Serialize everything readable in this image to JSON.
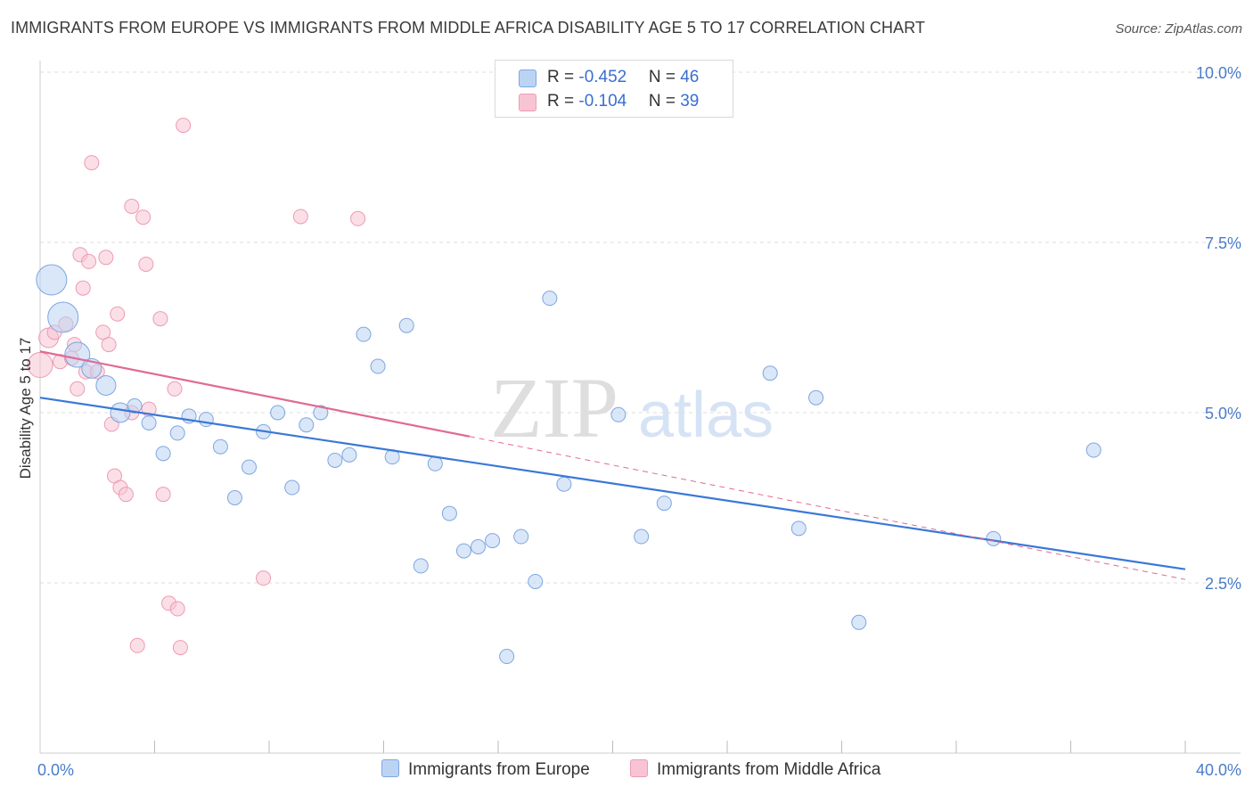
{
  "title": "IMMIGRANTS FROM EUROPE VS IMMIGRANTS FROM MIDDLE AFRICA DISABILITY AGE 5 TO 17 CORRELATION CHART",
  "source": "Source: ZipAtlas.com",
  "watermark": {
    "zip": "ZIP",
    "atlas": "atlas"
  },
  "legend": {
    "rows": [
      {
        "r_label": "R = ",
        "r_value": "-0.452",
        "n_label": "N = ",
        "n_value": "46"
      },
      {
        "r_label": "R = ",
        "r_value": "-0.104",
        "n_label": "N = ",
        "n_value": "39"
      }
    ]
  },
  "bottom_legend": [
    "Immigrants from Europe",
    "Immigrants from Middle Africa"
  ],
  "colors": {
    "europe_fill": "#bcd4f3",
    "europe_stroke": "#7ea6e0",
    "europe_line": "#3a78d6",
    "africa_fill": "#f8c4d4",
    "africa_stroke": "#ee9ab4",
    "africa_line": "#e06a93",
    "grid": "#dddddd",
    "tick_text": "#4a7cc9"
  },
  "chart_data": {
    "type": "scatter",
    "title": "IMMIGRANTS FROM EUROPE VS IMMIGRANTS FROM MIDDLE AFRICA DISABILITY AGE 5 TO 17 CORRELATION CHART",
    "xlabel": "",
    "ylabel": "Disability Age 5 to 17",
    "xlim": [
      0,
      40
    ],
    "ylim": [
      0,
      10.5
    ],
    "x_tick_labels": [
      {
        "value": 0,
        "label": "0.0%"
      },
      {
        "value": 40,
        "label": "40.0%"
      }
    ],
    "y_tick_labels": [
      {
        "value": 2.5,
        "label": "2.5%"
      },
      {
        "value": 5.0,
        "label": "5.0%"
      },
      {
        "value": 7.5,
        "label": "7.5%"
      },
      {
        "value": 10.0,
        "label": "10.0%"
      }
    ],
    "series": [
      {
        "name": "Immigrants from Europe",
        "R": -0.452,
        "N": 46,
        "trend": {
          "x": [
            0,
            40
          ],
          "y": [
            5.22,
            2.7
          ]
        },
        "points": [
          {
            "x": 0.4,
            "y": 6.95,
            "s": "xl"
          },
          {
            "x": 0.8,
            "y": 6.4,
            "s": "xl"
          },
          {
            "x": 1.3,
            "y": 5.85,
            "s": "l"
          },
          {
            "x": 1.8,
            "y": 5.65,
            "s": "m"
          },
          {
            "x": 2.3,
            "y": 5.4,
            "s": "m"
          },
          {
            "x": 2.8,
            "y": 5.0,
            "s": "m"
          },
          {
            "x": 3.3,
            "y": 5.1,
            "s": "s"
          },
          {
            "x": 3.8,
            "y": 4.85,
            "s": "s"
          },
          {
            "x": 4.3,
            "y": 4.4,
            "s": "s"
          },
          {
            "x": 4.8,
            "y": 4.7,
            "s": "s"
          },
          {
            "x": 5.2,
            "y": 4.95,
            "s": "s"
          },
          {
            "x": 5.8,
            "y": 4.9,
            "s": "s"
          },
          {
            "x": 6.3,
            "y": 4.5,
            "s": "s"
          },
          {
            "x": 6.8,
            "y": 3.75,
            "s": "s"
          },
          {
            "x": 7.3,
            "y": 4.2,
            "s": "s"
          },
          {
            "x": 7.8,
            "y": 4.72,
            "s": "s"
          },
          {
            "x": 8.3,
            "y": 5.0,
            "s": "s"
          },
          {
            "x": 8.8,
            "y": 3.9,
            "s": "s"
          },
          {
            "x": 9.3,
            "y": 4.82,
            "s": "s"
          },
          {
            "x": 9.8,
            "y": 5.0,
            "s": "s"
          },
          {
            "x": 10.3,
            "y": 4.3,
            "s": "s"
          },
          {
            "x": 10.8,
            "y": 4.38,
            "s": "s"
          },
          {
            "x": 11.3,
            "y": 6.15,
            "s": "s"
          },
          {
            "x": 11.8,
            "y": 5.68,
            "s": "s"
          },
          {
            "x": 12.3,
            "y": 4.35,
            "s": "s"
          },
          {
            "x": 12.8,
            "y": 6.28,
            "s": "s"
          },
          {
            "x": 13.3,
            "y": 2.75,
            "s": "s"
          },
          {
            "x": 13.8,
            "y": 4.25,
            "s": "s"
          },
          {
            "x": 14.3,
            "y": 3.52,
            "s": "s"
          },
          {
            "x": 14.8,
            "y": 2.97,
            "s": "s"
          },
          {
            "x": 15.3,
            "y": 3.03,
            "s": "s"
          },
          {
            "x": 15.8,
            "y": 3.12,
            "s": "s"
          },
          {
            "x": 16.3,
            "y": 1.42,
            "s": "s"
          },
          {
            "x": 16.8,
            "y": 3.18,
            "s": "s"
          },
          {
            "x": 17.3,
            "y": 2.52,
            "s": "s"
          },
          {
            "x": 17.8,
            "y": 6.68,
            "s": "s"
          },
          {
            "x": 18.3,
            "y": 3.95,
            "s": "s"
          },
          {
            "x": 20.2,
            "y": 4.97,
            "s": "s"
          },
          {
            "x": 21.0,
            "y": 3.18,
            "s": "s"
          },
          {
            "x": 21.8,
            "y": 3.67,
            "s": "s"
          },
          {
            "x": 25.5,
            "y": 5.58,
            "s": "s"
          },
          {
            "x": 26.5,
            "y": 3.3,
            "s": "s"
          },
          {
            "x": 27.1,
            "y": 5.22,
            "s": "s"
          },
          {
            "x": 28.6,
            "y": 1.92,
            "s": "s"
          },
          {
            "x": 33.3,
            "y": 3.15,
            "s": "s"
          },
          {
            "x": 36.8,
            "y": 4.45,
            "s": "s"
          }
        ]
      },
      {
        "name": "Immigrants from Middle Africa",
        "R": -0.104,
        "N": 39,
        "trend": {
          "x": [
            0,
            15
          ],
          "y": [
            5.9,
            4.65
          ]
        },
        "trend_extended": {
          "x": [
            15,
            40
          ],
          "y": [
            4.65,
            2.55
          ]
        },
        "points": [
          {
            "x": 0.0,
            "y": 5.7,
            "s": "l"
          },
          {
            "x": 0.3,
            "y": 6.1,
            "s": "m"
          },
          {
            "x": 0.5,
            "y": 6.18,
            "s": "s"
          },
          {
            "x": 0.7,
            "y": 5.75,
            "s": "s"
          },
          {
            "x": 0.9,
            "y": 6.3,
            "s": "s"
          },
          {
            "x": 1.1,
            "y": 5.8,
            "s": "s"
          },
          {
            "x": 1.2,
            "y": 6.0,
            "s": "s"
          },
          {
            "x": 1.3,
            "y": 5.35,
            "s": "s"
          },
          {
            "x": 1.4,
            "y": 7.32,
            "s": "s"
          },
          {
            "x": 1.5,
            "y": 6.83,
            "s": "s"
          },
          {
            "x": 1.6,
            "y": 5.6,
            "s": "s"
          },
          {
            "x": 1.7,
            "y": 7.22,
            "s": "s"
          },
          {
            "x": 1.8,
            "y": 8.67,
            "s": "s"
          },
          {
            "x": 2.0,
            "y": 5.6,
            "s": "s"
          },
          {
            "x": 2.2,
            "y": 6.18,
            "s": "s"
          },
          {
            "x": 2.3,
            "y": 7.28,
            "s": "s"
          },
          {
            "x": 2.4,
            "y": 6.0,
            "s": "s"
          },
          {
            "x": 2.5,
            "y": 4.83,
            "s": "s"
          },
          {
            "x": 2.6,
            "y": 4.07,
            "s": "s"
          },
          {
            "x": 2.7,
            "y": 6.45,
            "s": "s"
          },
          {
            "x": 2.8,
            "y": 3.9,
            "s": "s"
          },
          {
            "x": 3.0,
            "y": 3.8,
            "s": "s"
          },
          {
            "x": 3.2,
            "y": 5.0,
            "s": "s"
          },
          {
            "x": 3.2,
            "y": 8.03,
            "s": "s"
          },
          {
            "x": 3.4,
            "y": 1.58,
            "s": "s"
          },
          {
            "x": 3.6,
            "y": 7.87,
            "s": "s"
          },
          {
            "x": 3.7,
            "y": 7.18,
            "s": "s"
          },
          {
            "x": 3.8,
            "y": 5.05,
            "s": "s"
          },
          {
            "x": 4.2,
            "y": 6.38,
            "s": "s"
          },
          {
            "x": 4.3,
            "y": 3.8,
            "s": "s"
          },
          {
            "x": 4.5,
            "y": 2.2,
            "s": "s"
          },
          {
            "x": 4.7,
            "y": 5.35,
            "s": "s"
          },
          {
            "x": 4.8,
            "y": 2.12,
            "s": "s"
          },
          {
            "x": 4.9,
            "y": 1.55,
            "s": "s"
          },
          {
            "x": 5.0,
            "y": 9.22,
            "s": "s"
          },
          {
            "x": 7.8,
            "y": 2.57,
            "s": "s"
          },
          {
            "x": 9.1,
            "y": 7.88,
            "s": "s"
          },
          {
            "x": 11.1,
            "y": 7.85,
            "s": "s"
          }
        ]
      }
    ]
  }
}
